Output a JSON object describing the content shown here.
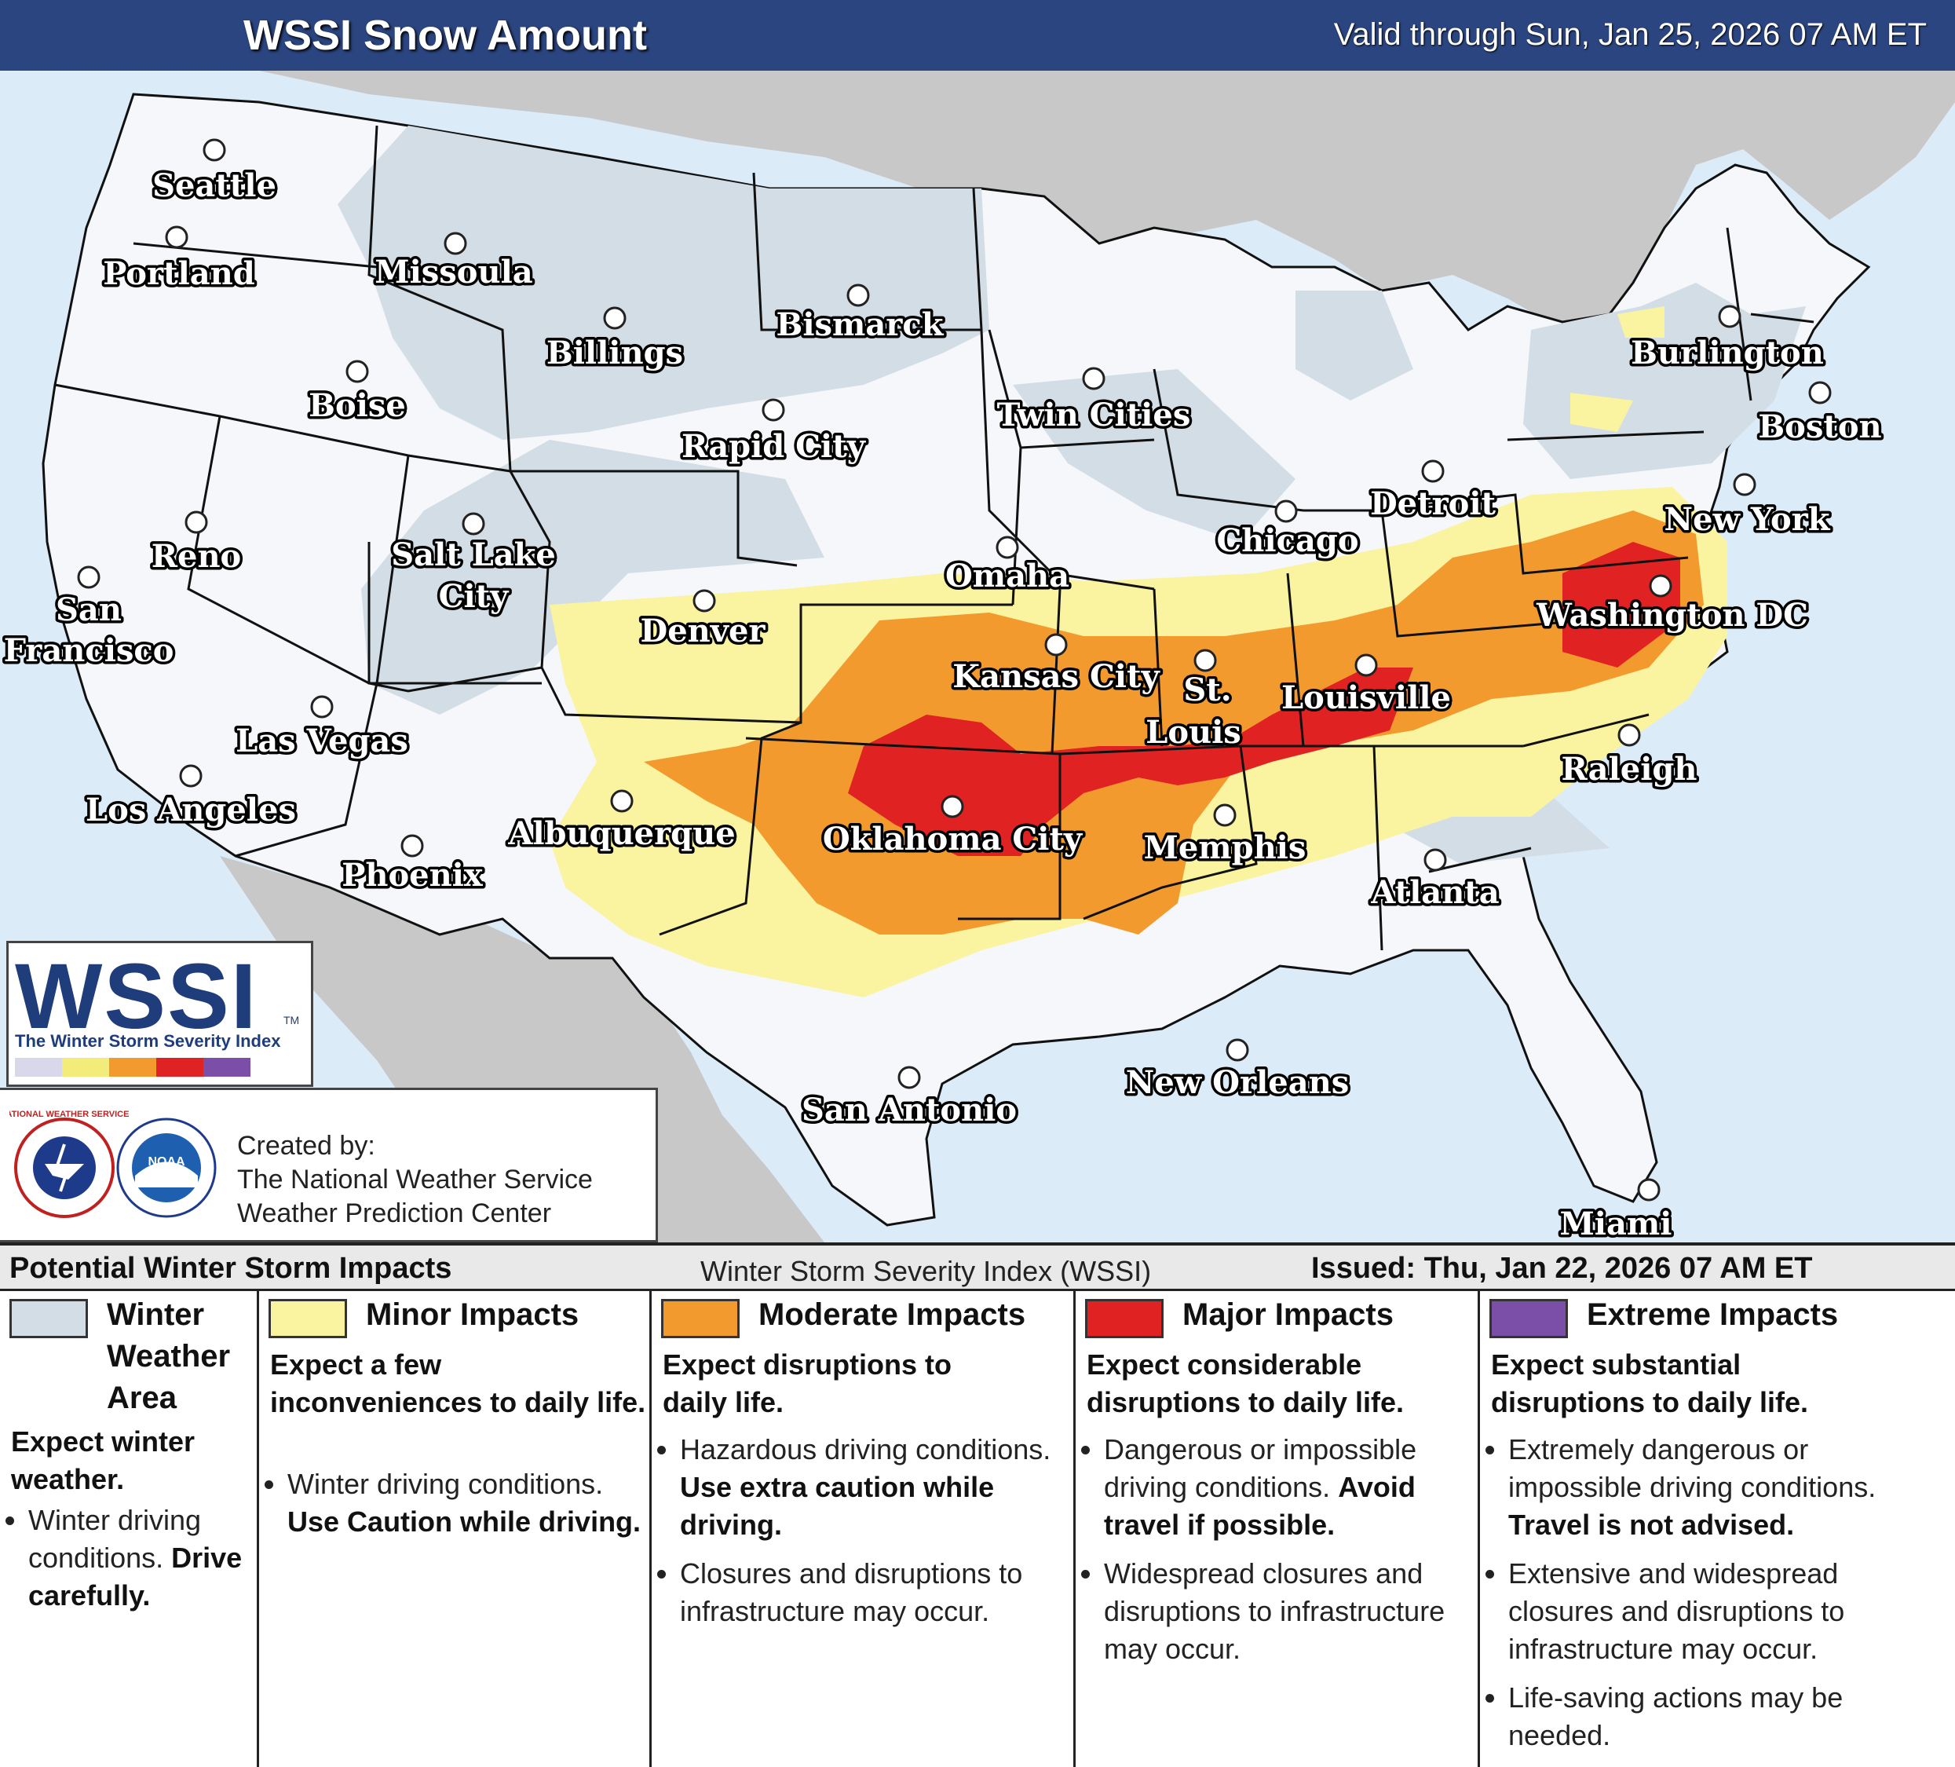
{
  "header": {
    "title": "WSSI Snow Amount",
    "valid": "Valid through Sun, Jan 25, 2026 07 AM ET"
  },
  "colors": {
    "header_bg": "#2b4580",
    "ocean": "#dcebf8",
    "land_outside_us": "#c8c8c8",
    "us_land": "#f5f7fa",
    "winter_weather_area": "#d3dde6",
    "minor": "#faf3a0",
    "moderate": "#f39a2e",
    "major": "#e02222",
    "extreme": "#7b4fa8"
  },
  "map": {
    "cities": [
      {
        "name": "Seattle"
      },
      {
        "name": "Portland"
      },
      {
        "name": "Missoula"
      },
      {
        "name": "Billings"
      },
      {
        "name": "Bismarck"
      },
      {
        "name": "Boise"
      },
      {
        "name": "Rapid City"
      },
      {
        "name": "Twin Cities"
      },
      {
        "name": "Burlington"
      },
      {
        "name": "Boston"
      },
      {
        "name": "Reno"
      },
      {
        "name": "Salt Lake City"
      },
      {
        "name": "Omaha"
      },
      {
        "name": "Chicago"
      },
      {
        "name": "Detroit"
      },
      {
        "name": "New York"
      },
      {
        "name": "San Francisco"
      },
      {
        "name": "Denver"
      },
      {
        "name": "Kansas City"
      },
      {
        "name": "St. Louis"
      },
      {
        "name": "Louisville"
      },
      {
        "name": "Washington DC"
      },
      {
        "name": "Las Vegas"
      },
      {
        "name": "Los Angeles"
      },
      {
        "name": "Albuquerque"
      },
      {
        "name": "Oklahoma City"
      },
      {
        "name": "Memphis"
      },
      {
        "name": "Raleigh"
      },
      {
        "name": "Phoenix"
      },
      {
        "name": "Atlanta"
      },
      {
        "name": "New Orleans"
      },
      {
        "name": "San Antonio"
      },
      {
        "name": "Miami"
      }
    ],
    "salt_lake_line1": "Salt Lake",
    "salt_lake_line2": "City",
    "san_francisco_line1": "San",
    "san_francisco_line2": "Francisco",
    "st_louis_line1": "St.",
    "st_louis_line2": "Louis"
  },
  "wssi_logo": {
    "text": "WSSI",
    "tm": "TM",
    "subtitle": "The Winter Storm Severity Index"
  },
  "credits": {
    "line1": "Created by:",
    "line2": "The National Weather Service",
    "line3": "Weather Prediction Center",
    "nws_seal": "NATIONAL WEATHER SERVICE",
    "noaa_seal": "NOAA"
  },
  "legend": {
    "heading": "Potential Winter Storm Impacts",
    "center": "Winter Storm Severity Index (WSSI)",
    "issued": "Issued: Thu, Jan 22, 2026 07 AM ET",
    "columns": [
      {
        "title": "Winter Weather Area",
        "expect": "Expect winter weather.",
        "bullets": [
          {
            "text": "Winter driving conditions.",
            "bold": "Drive carefully."
          }
        ]
      },
      {
        "title": "Minor Impacts",
        "expect": "Expect a few inconveniences to daily life.",
        "bullets": [
          {
            "text": "Winter driving conditions.",
            "bold": "Use Caution while driving."
          }
        ]
      },
      {
        "title": "Moderate Impacts",
        "expect": "Expect disruptions to daily life.",
        "bullets": [
          {
            "text": "Hazardous driving conditions.",
            "bold": "Use extra caution while driving."
          },
          {
            "text": "Closures and disruptions to infrastructure may occur.",
            "bold": ""
          }
        ]
      },
      {
        "title": "Major Impacts",
        "expect": "Expect considerable disruptions to daily life.",
        "bullets": [
          {
            "text": "Dangerous or impossible driving conditions.",
            "bold": "Avoid travel if possible."
          },
          {
            "text": "Widespread closures and disruptions to infrastructure may occur.",
            "bold": ""
          }
        ]
      },
      {
        "title": "Extreme Impacts",
        "expect": "Expect substantial disruptions to daily life.",
        "bullets": [
          {
            "text": "Extremely dangerous or impossible driving conditions.",
            "bold": "Travel is not advised."
          },
          {
            "text": "Extensive and widespread closures and disruptions to infrastructure may occur.",
            "bold": ""
          },
          {
            "text": "Life-saving actions may be needed.",
            "bold": ""
          }
        ]
      }
    ]
  }
}
